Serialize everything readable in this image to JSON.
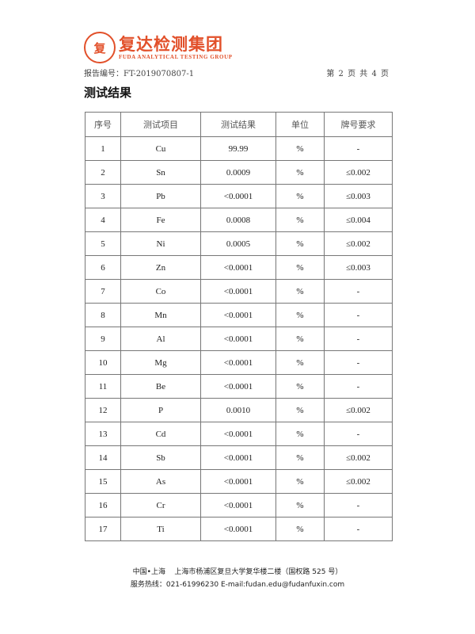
{
  "header": {
    "logo_cn": "复达检测集团",
    "logo_en": "FUDA ANALYTICAL TESTING GROUP",
    "report_no": "报告编号：FT-2019070807-1",
    "page_no": "第 2 页 共 4 页"
  },
  "section_title": "测试结果",
  "table": {
    "columns": [
      "序号",
      "测试项目",
      "测试结果",
      "单位",
      "牌号要求"
    ],
    "rows": [
      [
        "1",
        "Cu",
        "99.99",
        "%",
        "-"
      ],
      [
        "2",
        "Sn",
        "0.0009",
        "%",
        "≤0.002"
      ],
      [
        "3",
        "Pb",
        "<0.0001",
        "%",
        "≤0.003"
      ],
      [
        "4",
        "Fe",
        "0.0008",
        "%",
        "≤0.004"
      ],
      [
        "5",
        "Ni",
        "0.0005",
        "%",
        "≤0.002"
      ],
      [
        "6",
        "Zn",
        "<0.0001",
        "%",
        "≤0.003"
      ],
      [
        "7",
        "Co",
        "<0.0001",
        "%",
        "-"
      ],
      [
        "8",
        "Mn",
        "<0.0001",
        "%",
        "-"
      ],
      [
        "9",
        "Al",
        "<0.0001",
        "%",
        "-"
      ],
      [
        "10",
        "Mg",
        "<0.0001",
        "%",
        "-"
      ],
      [
        "11",
        "Be",
        "<0.0001",
        "%",
        "-"
      ],
      [
        "12",
        "P",
        "0.0010",
        "%",
        "≤0.002"
      ],
      [
        "13",
        "Cd",
        "<0.0001",
        "%",
        "-"
      ],
      [
        "14",
        "Sb",
        "<0.0001",
        "%",
        "≤0.002"
      ],
      [
        "15",
        "As",
        "<0.0001",
        "%",
        "≤0.002"
      ],
      [
        "16",
        "Cr",
        "<0.0001",
        "%",
        "-"
      ],
      [
        "17",
        "Ti",
        "<0.0001",
        "%",
        "-"
      ]
    ]
  },
  "footer": {
    "address": "中国•上海    上海市杨浦区复旦大学复华楼二楼（国权路 525 号）",
    "contact": "服务热线：021-61996230 E-mail:fudan.edu@fudanfuxin.com"
  },
  "colors": {
    "brand": "#e2502a"
  }
}
